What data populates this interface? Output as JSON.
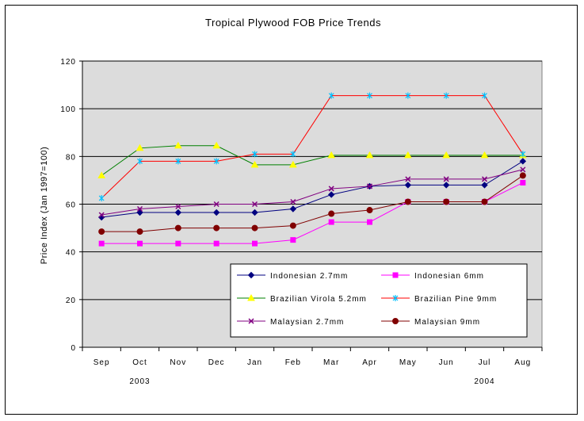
{
  "chart_data": {
    "type": "line",
    "title": "Tropical Plywood FOB Price Trends",
    "ylabel": "Price Index (Jan 1997=100)",
    "xlabel": "",
    "ylim": [
      0,
      120
    ],
    "yticks": [
      "0",
      "20",
      "40",
      "60",
      "80",
      "100",
      "120"
    ],
    "ytick_values": [
      0,
      20,
      40,
      60,
      80,
      100,
      120
    ],
    "categories": [
      "Sep",
      "Oct",
      "Nov",
      "Dec",
      "Jan",
      "Feb",
      "Mar",
      "Apr",
      "May",
      "Jun",
      "Jul",
      "Aug"
    ],
    "year_labels": [
      {
        "text": "2003",
        "category_index": 1
      },
      {
        "text": "2004",
        "category_index": 10
      }
    ],
    "grid": "horizontal",
    "legend_position": "lower-right inside plot",
    "series": [
      {
        "name": "Indonesian 2.7mm",
        "color": "#000080",
        "marker": "diamond",
        "values": [
          54.5,
          56.5,
          56.5,
          56.5,
          56.5,
          58,
          64,
          67.5,
          68,
          68,
          68,
          78
        ]
      },
      {
        "name": "Indonesian 6mm",
        "color": "#ff00ff",
        "marker": "square",
        "values": [
          43.5,
          43.5,
          43.5,
          43.5,
          43.5,
          45,
          52.5,
          52.5,
          61,
          61,
          61,
          69
        ]
      },
      {
        "name": "Brazilian Virola 5.2mm",
        "color": "#008000",
        "marker": "triangle",
        "marker_color": "#ffff00",
        "values": [
          72,
          83.5,
          84.5,
          84.5,
          76.5,
          76.5,
          80.5,
          80.5,
          80.5,
          80.5,
          80.5,
          80.5
        ]
      },
      {
        "name": "Brazilian Pine 9mm",
        "color": "#ff0000",
        "marker": "star",
        "marker_color": "#00c0ff",
        "values": [
          62.5,
          78,
          78,
          78,
          81,
          81,
          105.5,
          105.5,
          105.5,
          105.5,
          105.5,
          81
        ]
      },
      {
        "name": "Malaysian 2.7mm",
        "color": "#800080",
        "marker": "x",
        "values": [
          55.5,
          58,
          59,
          60,
          60,
          61,
          66.5,
          67.5,
          70.5,
          70.5,
          70.5,
          74.5
        ]
      },
      {
        "name": "Malaysian 9mm",
        "color": "#800000",
        "marker": "circle",
        "values": [
          48.5,
          48.5,
          50,
          50,
          50,
          51,
          56,
          57.5,
          61,
          61,
          61,
          72
        ]
      }
    ]
  }
}
